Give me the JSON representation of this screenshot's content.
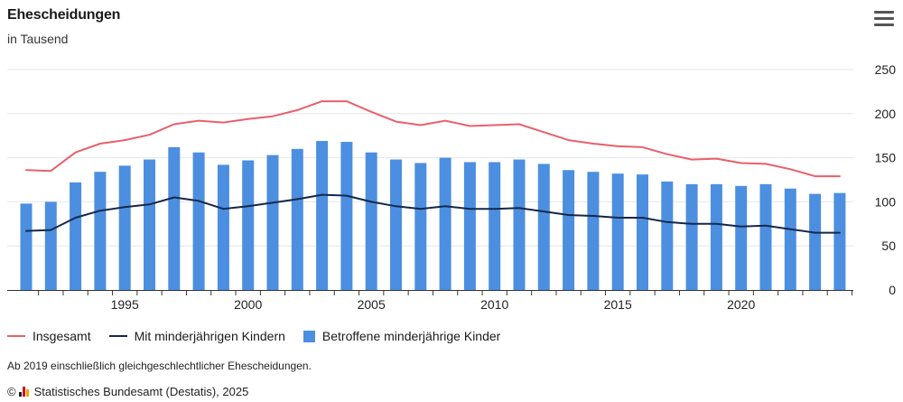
{
  "header": {
    "title": "Ehescheidungen",
    "subtitle": "in Tausend"
  },
  "menu_icon": "hamburger-menu-icon",
  "colors": {
    "total": "#e8606b",
    "with_children": "#14284b",
    "children_bars": "#4c8fe0",
    "grid": "#e6e6e6",
    "axis": "#333333"
  },
  "legend": {
    "total_label": "Insgesamt",
    "with_children_label": "Mit minderjährigen Kindern",
    "children_label": "Betroffene minderjährige Kinder"
  },
  "footer": {
    "note": "Ab 2019 einschließlich gleichgeschlechtlicher Ehescheidungen.",
    "copyright_symbol": "©",
    "credits": "Statistisches Bundesamt (Destatis), 2025"
  },
  "chart_data": {
    "type": "bar",
    "title": "Ehescheidungen",
    "subtitle": "in Tausend",
    "x": [
      1991,
      1992,
      1993,
      1994,
      1995,
      1996,
      1997,
      1998,
      1999,
      2000,
      2001,
      2002,
      2003,
      2004,
      2005,
      2006,
      2007,
      2008,
      2009,
      2010,
      2011,
      2012,
      2013,
      2014,
      2015,
      2016,
      2017,
      2018,
      2019,
      2020,
      2021,
      2022,
      2023,
      2024
    ],
    "x_tick_labels": [
      "1995",
      "2000",
      "2005",
      "2010",
      "2015",
      "2020"
    ],
    "y_tick_labels": [
      "0",
      "50",
      "100",
      "150",
      "200",
      "250"
    ],
    "ylim": [
      0,
      250
    ],
    "y_axis_side": "right",
    "grid": true,
    "legend_position": "bottom-left",
    "series": [
      {
        "name": "Betroffene minderjährige Kinder",
        "type": "bar",
        "values": [
          98,
          100,
          122,
          134,
          141,
          148,
          162,
          156,
          142,
          147,
          153,
          160,
          169,
          168,
          156,
          148,
          144,
          150,
          145,
          145,
          148,
          143,
          136,
          134,
          132,
          131,
          123,
          120,
          120,
          118,
          120,
          115,
          109,
          110
        ]
      },
      {
        "name": "Insgesamt",
        "type": "line",
        "values": [
          136,
          135,
          156,
          166,
          170,
          176,
          188,
          192,
          190,
          194,
          197,
          204,
          214,
          214,
          202,
          191,
          187,
          192,
          186,
          187,
          188,
          179,
          170,
          166,
          163,
          162,
          154,
          148,
          149,
          144,
          143,
          137,
          129,
          129
        ]
      },
      {
        "name": "Mit minderjährigen Kindern",
        "type": "line",
        "values": [
          67,
          68,
          82,
          90,
          94,
          97,
          105,
          101,
          92,
          95,
          99,
          103,
          108,
          107,
          100,
          95,
          92,
          95,
          92,
          92,
          93,
          89,
          85,
          84,
          82,
          82,
          77,
          75,
          75,
          72,
          73,
          69,
          65,
          65
        ]
      }
    ]
  }
}
